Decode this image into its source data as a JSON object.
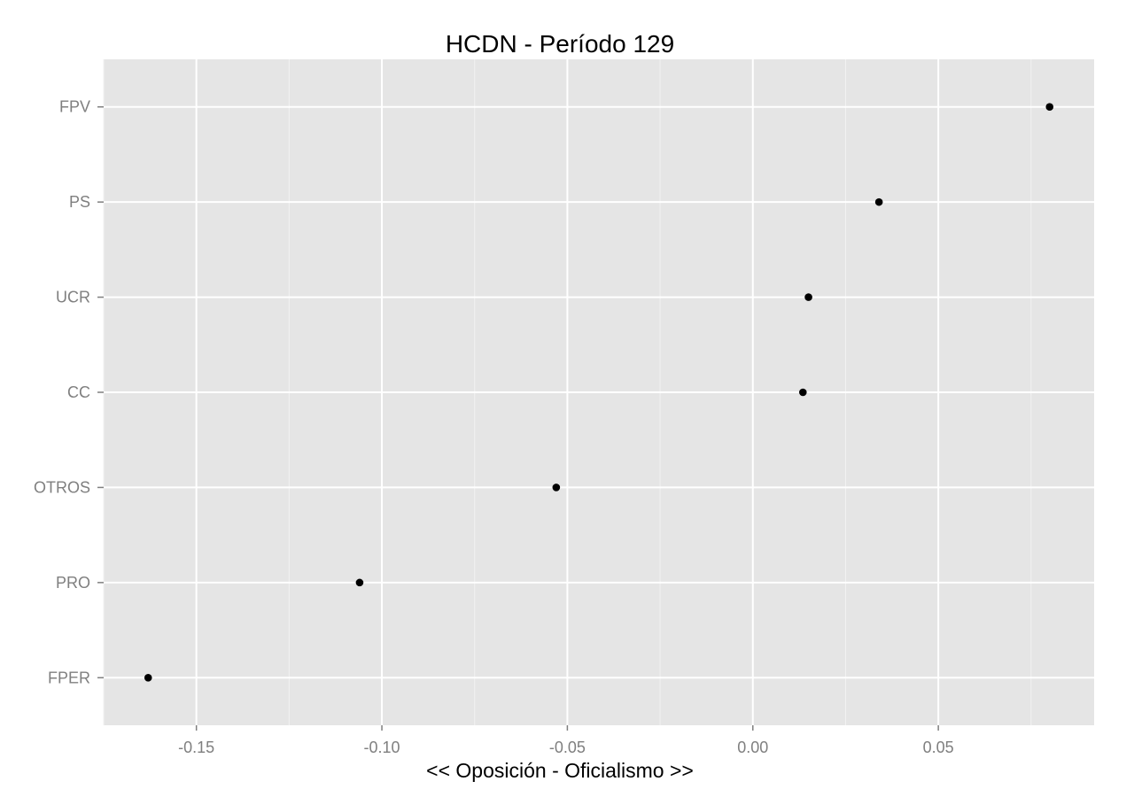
{
  "chart_data": {
    "type": "scatter",
    "title": "HCDN - Período 129",
    "xlabel": "<< Oposición - Oficialismo >>",
    "ylabel": "",
    "xlim": [
      -0.175,
      0.092
    ],
    "x_ticks": [
      -0.15,
      -0.1,
      -0.05,
      0.0,
      0.05
    ],
    "x_tick_labels": [
      "-0.15",
      "-0.10",
      "-0.05",
      "0.00",
      "0.05"
    ],
    "categories": [
      "FPV",
      "PS",
      "UCR",
      "CC",
      "OTROS",
      "PRO",
      "FPER"
    ],
    "points": [
      {
        "category": "FPV",
        "x": 0.08
      },
      {
        "category": "PS",
        "x": 0.034
      },
      {
        "category": "UCR",
        "x": 0.015
      },
      {
        "category": "CC",
        "x": 0.0135
      },
      {
        "category": "OTROS",
        "x": -0.053
      },
      {
        "category": "PRO",
        "x": -0.106
      },
      {
        "category": "FPER",
        "x": -0.163
      }
    ],
    "grid": true,
    "legend": "none",
    "colors": {
      "panel_background": "#e5e5e5",
      "grid_major": "#ffffff",
      "grid_minor": "#f2f2f2",
      "point": "#000000",
      "tick_text": "#7f7f7f",
      "tick_mark": "#7f7f7f"
    }
  }
}
